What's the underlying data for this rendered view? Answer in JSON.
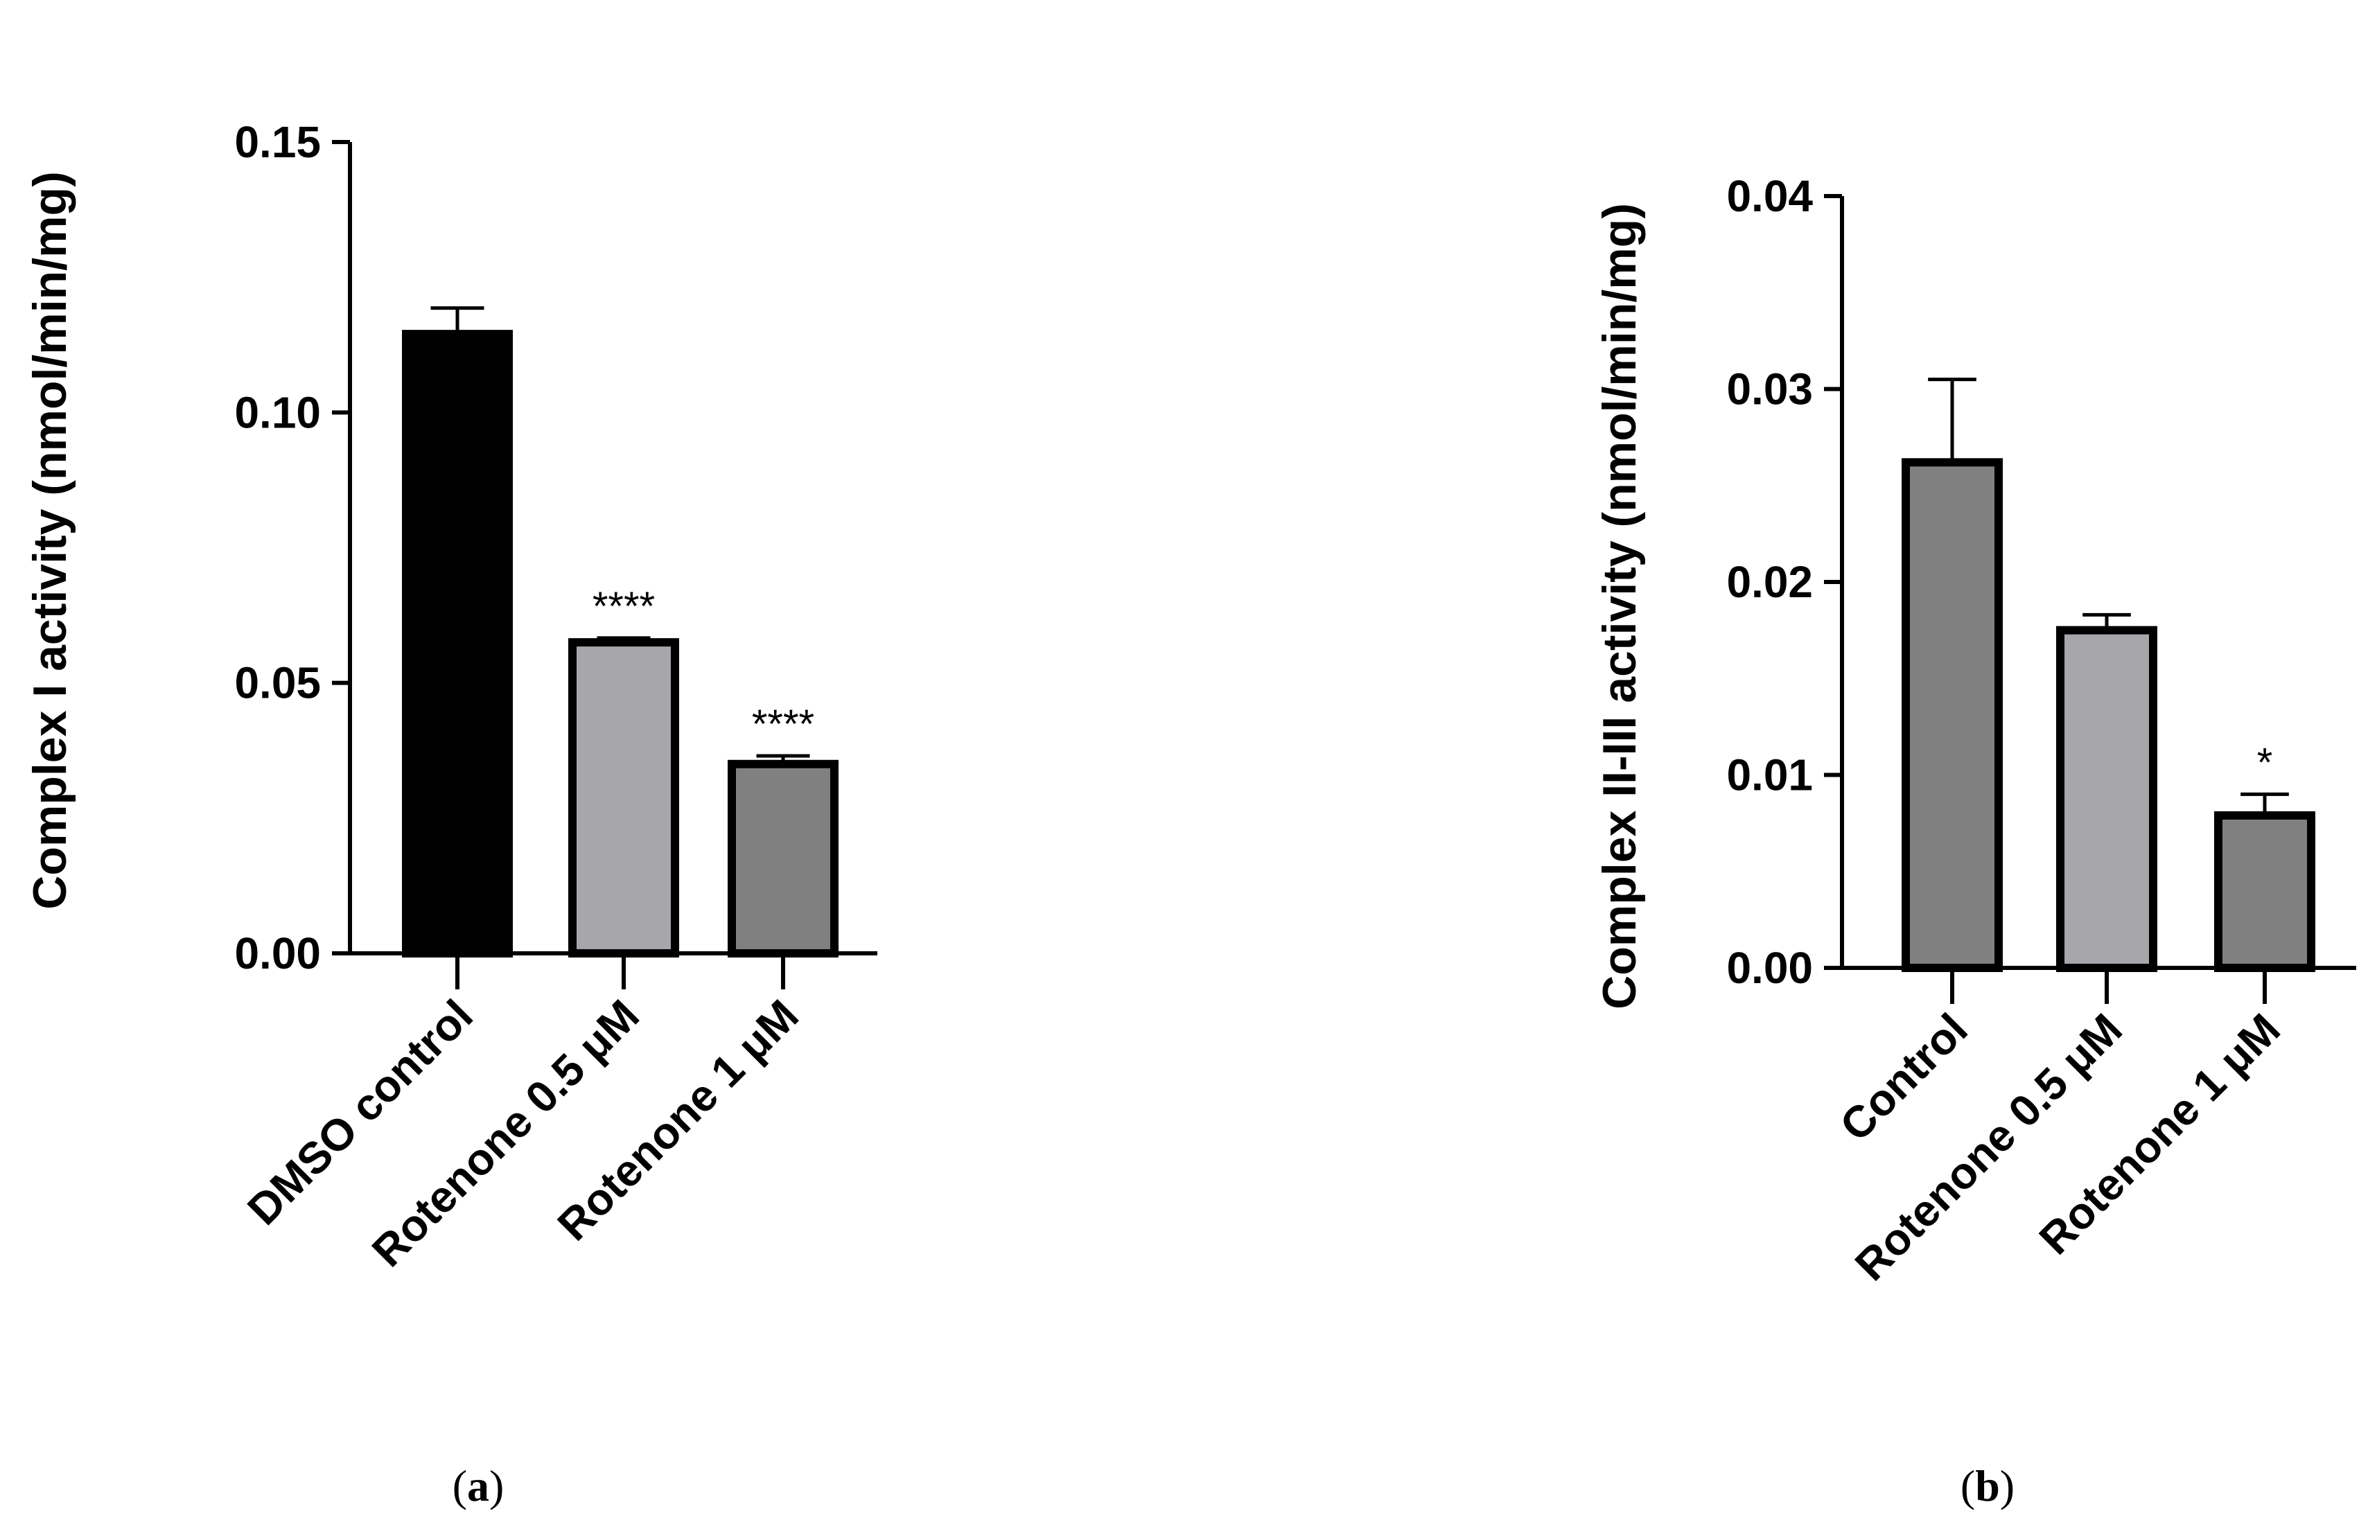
{
  "chart_data": [
    {
      "type": "bar",
      "panel": "a",
      "ylabel": "Complex I activity (nmol/min/mg)",
      "xlabel": "",
      "ylim": [
        0,
        0.15
      ],
      "yticks": [
        "0.00",
        "0.05",
        "0.10",
        "0.15"
      ],
      "ytick_values": [
        0,
        0.05,
        0.1,
        0.15
      ],
      "categories": [
        "DMSO control",
        "Rotenone 0.5 μM",
        "Rotenone 1 μM"
      ],
      "values": [
        0.1145,
        0.0575,
        0.035
      ],
      "errors": [
        0.0048,
        0.0008,
        0.0015
      ],
      "fills": [
        "#000000",
        "#a7a7ab",
        "#808080"
      ],
      "significance": [
        "",
        "****",
        "****"
      ]
    },
    {
      "type": "bar",
      "panel": "b",
      "ylabel": "Complex II-III activity (nmol/min/mg)",
      "xlabel": "",
      "ylim": [
        0,
        0.04
      ],
      "yticks": [
        "0.00",
        "0.01",
        "0.02",
        "0.03",
        "0.04"
      ],
      "ytick_values": [
        0,
        0.01,
        0.02,
        0.03,
        0.04
      ],
      "categories": [
        "Control",
        "Rotenone 0.5 μM",
        "Rotenone 1 μM"
      ],
      "values": [
        0.0262,
        0.0175,
        0.0079
      ],
      "errors": [
        0.0043,
        0.0008,
        0.0011
      ],
      "fills": [
        "#808080",
        "#a7a7ab",
        "#808080"
      ],
      "significance": [
        "",
        "",
        "*"
      ]
    }
  ],
  "panel_labels": [
    "a",
    "b"
  ]
}
